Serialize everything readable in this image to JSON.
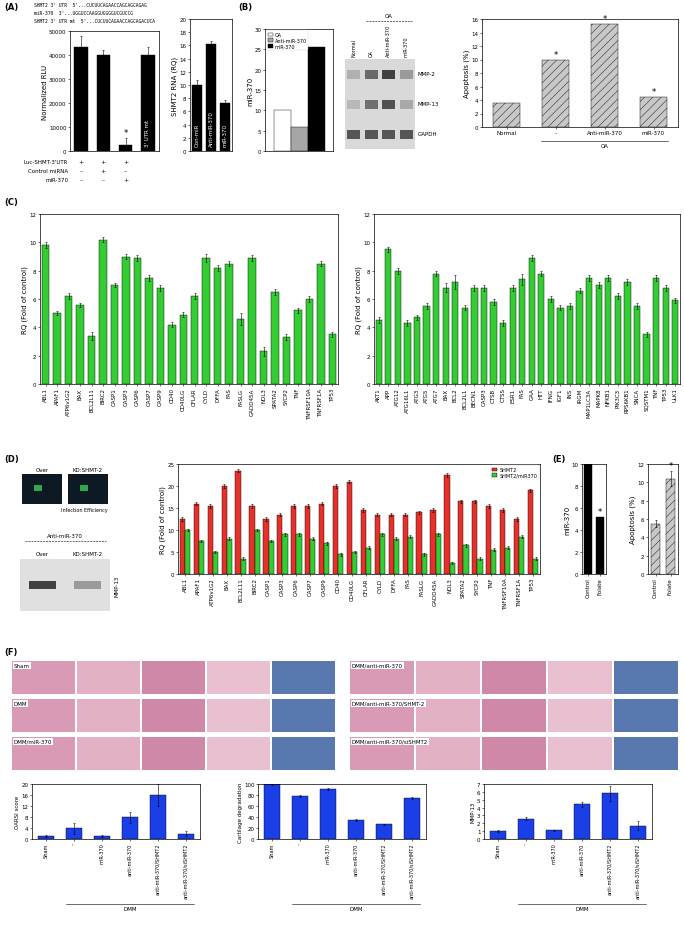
{
  "panels": [
    "(A)",
    "(B)",
    "(C)",
    "(D)",
    "(E)",
    "(F)"
  ],
  "sequences": [
    "SHMT2 3' UTR  5'...CUCUUCAGAACCAGCAGCAGAG",
    "miR-370  3'...UGGUCCAAGGUGGGGUCGUCCG",
    "SHMT2 3' UTR mt  5'...CUCUUCAGAACCAGCAGACUCA"
  ],
  "blots": [
    {
      "columns": [
        "Normal",
        "OA",
        "Anti-miR-370",
        "miR-370"
      ],
      "group": "OA",
      "group_columns": [
        "OA",
        "Anti-miR-370",
        "miR-370"
      ],
      "rows": [
        "MMP-2",
        "MMP-13",
        "GAPDH"
      ]
    },
    {
      "header": "Anti-miR-370",
      "columns": [
        "Over",
        "KD:SHMT-2"
      ],
      "rows": [
        "MMP-13"
      ]
    }
  ],
  "images": {
    "labels": [
      "Over",
      "KD:SHMT-2"
    ],
    "caption": "Infection Efficiency"
  },
  "histology": [
    "Sham",
    "DMM",
    "DMM/miR-370",
    "DMM/anti-miR-370",
    "DMM/anti-miR-370/SHMT-2",
    "DMM/anti-miR-370/siSHMT2"
  ],
  "chart_data": [
    {
      "type": "bar",
      "ylabel": "Normalized RLU",
      "categories": [
        null,
        null,
        null,
        null
      ],
      "values": [
        43500,
        40000,
        2500,
        40000
      ],
      "errors": [
        4500,
        2000,
        3000,
        3500
      ],
      "color": "#000000",
      "ylim": [
        0,
        50000
      ],
      "yticks": [
        0,
        10000,
        20000,
        30000,
        40000,
        50000
      ],
      "significance": [
        null,
        null,
        "*",
        null
      ],
      "bar_text": [
        null,
        null,
        null,
        "3' UTR mt"
      ],
      "table": [
        [
          "Luc-SHMT-3'UTR",
          "+",
          "+",
          "+"
        ],
        [
          "Control miRNA",
          "–",
          "+",
          "–"
        ],
        [
          "miR-370",
          "–",
          "–",
          "+"
        ]
      ]
    },
    {
      "type": "bar",
      "ylabel": "SHMT2 RNA (RQ)",
      "categories": [
        "Con-miR",
        "Anti-miR-370",
        "miR-370"
      ],
      "values": [
        10,
        16.2,
        7.2
      ],
      "errors": [
        0.8,
        0.4,
        0.6
      ],
      "color": "#000000",
      "ylim": [
        0,
        20
      ],
      "yticks": [
        0,
        2,
        4,
        6,
        8,
        10,
        12,
        14,
        16,
        18,
        20
      ]
    },
    {
      "type": "bar",
      "ylabel": "miR-370",
      "categories": [
        null
      ],
      "tick_labels": "y",
      "legend": "upper left",
      "series": [
        {
          "name": "OA",
          "color": "#ffffff",
          "values": [
            10
          ]
        },
        {
          "name": "Anti-miR-370",
          "color": "#a6a6a6",
          "values": [
            5.8
          ]
        },
        {
          "name": "miR-370",
          "color": "#000000",
          "values": [
            25.5
          ]
        }
      ],
      "ylim": [
        0,
        30
      ],
      "yticks": [
        0,
        5,
        10,
        15,
        20,
        25,
        30
      ]
    },
    {
      "type": "bar",
      "ylabel": "Apoptosis (%)",
      "categories": [
        "Normal",
        "-",
        "Anti-miR-370",
        "miR-370"
      ],
      "values": [
        3.6,
        9.9,
        15.2,
        4.5
      ],
      "color": "#c8c8c8",
      "ylim": [
        0,
        16
      ],
      "yticks": [
        0,
        2,
        4,
        6,
        8,
        10,
        12,
        14,
        16
      ],
      "significance": [
        null,
        "*",
        "*",
        "*"
      ],
      "group": {
        "label": "OA",
        "categories": [
          "-",
          "Anti-miR-370",
          "miR-370"
        ]
      }
    },
    {
      "type": "bar",
      "ylabel": "RQ (Fold of control)",
      "categories": [
        "ABL1",
        "APAF1",
        "ATP6v1G2",
        "BAX",
        "BCL2L11",
        "BIRC2",
        "CASP1",
        "CASP3",
        "CASP6",
        "CASP7",
        "CASP9",
        "CD40",
        "CD40LG",
        "CFLAR",
        "CYLD",
        "DFFA",
        "FAS",
        "FASLG",
        "GADD45A",
        "NOL3",
        "SPATA2",
        "SYCP2",
        "TNF",
        "TNFRSF10A",
        "TNFRSF1A",
        "TP53"
      ],
      "values": [
        9.8,
        5.0,
        6.2,
        5.6,
        3.4,
        10.2,
        7.0,
        9.0,
        8.9,
        7.5,
        6.8,
        4.2,
        4.9,
        6.2,
        8.9,
        8.2,
        8.5,
        4.6,
        8.9,
        2.3,
        6.5,
        3.3,
        5.2,
        6.0,
        8.5,
        3.5
      ],
      "errors": [
        0.2,
        0.15,
        0.2,
        0.15,
        0.3,
        0.2,
        0.15,
        0.15,
        0.2,
        0.2,
        0.2,
        0.15,
        0.2,
        0.2,
        0.3,
        0.2,
        0.2,
        0.4,
        0.2,
        0.3,
        0.2,
        0.2,
        0.2,
        0.2,
        0.2,
        0.15
      ],
      "color": "#33cc33",
      "ylim": [
        0,
        12
      ],
      "yticks": [
        0,
        2,
        4,
        6,
        8,
        10,
        12
      ]
    },
    {
      "type": "bar",
      "ylabel": "RQ (Fold of control)",
      "categories": [
        "AKT1",
        "APP",
        "ATG12",
        "ATG16L1",
        "ATG3",
        "ATG5",
        "ATG7",
        "BAX",
        "BCL2",
        "BCL2L1",
        "BECN1",
        "CASP3",
        "CTSB",
        "CTSS",
        "ESR1",
        "FAS",
        "GAA",
        "HTT",
        "IFNG",
        "IGF1",
        "INS",
        "IRGM",
        "MAP1LC3A",
        "MAPK8",
        "NFKB1",
        "PIK3C3",
        "RPS6KB1",
        "SNCA",
        "SQSTM1",
        "TNF",
        "TP53",
        "ULK1"
      ],
      "values": [
        4.5,
        9.5,
        8.0,
        4.3,
        4.7,
        5.5,
        7.8,
        6.8,
        7.2,
        5.4,
        6.8,
        6.8,
        5.8,
        4.3,
        6.8,
        7.4,
        8.9,
        7.8,
        6.0,
        5.4,
        5.5,
        6.6,
        7.5,
        7.0,
        7.5,
        6.2,
        7.2,
        5.5,
        3.5,
        7.5,
        6.8,
        5.9
      ],
      "errors": [
        0.2,
        0.15,
        0.2,
        0.2,
        0.2,
        0.2,
        0.2,
        0.3,
        0.5,
        0.2,
        0.2,
        0.2,
        0.2,
        0.2,
        0.2,
        0.4,
        0.2,
        0.2,
        0.2,
        0.2,
        0.2,
        0.2,
        0.2,
        0.2,
        0.2,
        0.2,
        0.2,
        0.2,
        0.2,
        0.2,
        0.2,
        0.2
      ],
      "color": "#33cc33",
      "ylim": [
        0,
        12
      ],
      "yticks": [
        0,
        2,
        4,
        6,
        8,
        10,
        12
      ]
    },
    {
      "type": "bar",
      "ylabel": "RQ (Fold of control)",
      "legend": "upper right",
      "categories": [
        "ABL1",
        "APAF1",
        "ATP6v1G2",
        "BAX",
        "BCL2L11",
        "BIRC2",
        "CASP1",
        "CASP3",
        "CASP6",
        "CASP7",
        "CASP9",
        "CD40",
        "CD40LG",
        "CFLAR",
        "CYLD",
        "DFFA",
        "FAS",
        "FASLG",
        "GADD45A",
        "NOL3",
        "SPATA2",
        "SYCP2",
        "TNF",
        "TNFRSF10A",
        "TNFRSF1A",
        "TP53"
      ],
      "series": [
        {
          "name": "SHMT2",
          "color": "#e8302a",
          "values": [
            12.5,
            16,
            15.5,
            20,
            23.5,
            15.5,
            12.5,
            13.5,
            15.5,
            15.5,
            16,
            20,
            21,
            14.5,
            13.5,
            13.5,
            13.5,
            14,
            14.5,
            22.5,
            16.5,
            16.5,
            15.5,
            14.5,
            12.5,
            19
          ],
          "errors": [
            0.4,
            0.4,
            0.4,
            0.5,
            0.4,
            0.4,
            0.4,
            0.4,
            0.4,
            0.4,
            0.4,
            0.4,
            0.4,
            0.4,
            0.4,
            0.4,
            0.4,
            0.4,
            0.4,
            0.4,
            0.4,
            0.4,
            0.4,
            0.4,
            0.4,
            0.4
          ]
        },
        {
          "name": "SHMT2/miR370",
          "color": "#33cc33",
          "values": [
            10,
            7.5,
            5,
            8,
            3.5,
            10,
            7.5,
            9,
            9,
            8,
            7,
            4.5,
            5,
            6,
            9,
            8,
            8.5,
            4.5,
            9,
            2.5,
            6.5,
            3.5,
            5.5,
            6,
            8.5,
            3.5
          ],
          "errors": [
            0.3,
            0.3,
            0.3,
            0.3,
            0.3,
            0.3,
            0.3,
            0.3,
            0.3,
            0.3,
            0.3,
            0.3,
            0.3,
            0.3,
            0.3,
            0.3,
            0.3,
            0.3,
            0.3,
            0.3,
            0.3,
            0.3,
            0.3,
            0.3,
            0.3,
            0.3
          ]
        }
      ],
      "ylim": [
        0,
        25
      ],
      "yticks": [
        0,
        5,
        10,
        15,
        20,
        25
      ]
    },
    {
      "type": "bar",
      "ylabel": "miR-370",
      "categories": [
        "Control",
        "Folate"
      ],
      "values": [
        10,
        5.2
      ],
      "color": "#000000",
      "ylim": [
        0,
        10
      ],
      "yticks": [
        0,
        2,
        4,
        6,
        8,
        10
      ],
      "significance": [
        null,
        "*"
      ]
    },
    {
      "type": "bar",
      "ylabel": "Apoptosis (%)",
      "categories": [
        "Control",
        "Folate"
      ],
      "values": [
        5.5,
        10.4
      ],
      "errors": [
        0.4,
        0.8
      ],
      "color": "#c8c8c8",
      "ylim": [
        0,
        12
      ],
      "yticks": [
        0,
        2,
        4,
        6,
        8,
        10,
        12
      ],
      "significance": [
        null,
        "*"
      ]
    },
    {
      "type": "bar",
      "ylabel": "OARSI score",
      "categories": [
        "Sham",
        "-",
        "miR-370",
        "anti-miR-370",
        "anti-miR-370/SHMT2",
        "anti-miR-370/siSHMT2"
      ],
      "values": [
        1,
        4,
        1,
        8,
        16,
        2
      ],
      "errors": [
        0.3,
        2,
        0.3,
        2,
        4,
        0.8
      ],
      "color": "#1a3fe6",
      "ylim": [
        0,
        20
      ],
      "yticks": [
        0,
        4,
        8,
        12,
        16,
        20
      ],
      "group": {
        "label": "DMM",
        "categories": [
          "-",
          "miR-370",
          "anti-miR-370",
          "anti-miR-370/SHMT2",
          "anti-miR-370/siSHMT2"
        ]
      }
    },
    {
      "type": "bar",
      "ylabel": "Cartilage degradation",
      "categories": [
        "Sham",
        "-",
        "miR-370",
        "anti-miR-370",
        "anti-miR-370/SHMT2",
        "anti-miR-370/siSHMT2"
      ],
      "values": [
        100,
        78,
        91,
        34,
        27,
        74
      ],
      "errors": [
        1,
        2,
        2,
        2,
        1,
        2
      ],
      "color": "#1a3fe6",
      "ylim": [
        0,
        100
      ],
      "yticks": [
        0,
        20,
        40,
        60,
        80,
        100
      ],
      "group": {
        "label": "DMM",
        "categories": [
          "-",
          "miR-370",
          "anti-miR-370",
          "anti-miR-370/SHMT2",
          "anti-miR-370/siSHMT2"
        ]
      }
    },
    {
      "type": "bar",
      "ylabel": "MMP-13",
      "categories": [
        "Sham",
        "-",
        "miR-370",
        "anti-miR-370",
        "anti-miR-370/SHMT2",
        "anti-miR-370/siSHMT2"
      ],
      "values": [
        1,
        2.6,
        1.1,
        4.4,
        5.8,
        1.7
      ],
      "errors": [
        0.1,
        0.2,
        0.1,
        0.3,
        0.9,
        0.6
      ],
      "color": "#1a3fe6",
      "ylim": [
        0,
        7
      ],
      "yticks": [
        0,
        1,
        2,
        3,
        4,
        5,
        6,
        7
      ],
      "group": {
        "label": "DMM",
        "categories": [
          "-",
          "miR-370",
          "anti-miR-370",
          "anti-miR-370/SHMT2",
          "anti-miR-370/siSHMT2"
        ]
      }
    }
  ]
}
